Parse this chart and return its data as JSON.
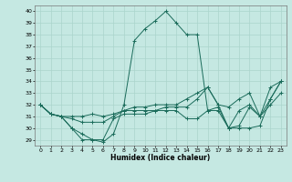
{
  "xlabel": "Humidex (Indice chaleur)",
  "xlim": [
    -0.5,
    23.5
  ],
  "ylim": [
    28.5,
    40.5
  ],
  "yticks": [
    29,
    30,
    31,
    32,
    33,
    34,
    35,
    36,
    37,
    38,
    39,
    40
  ],
  "xticks": [
    0,
    1,
    2,
    3,
    4,
    5,
    6,
    7,
    8,
    9,
    10,
    11,
    12,
    13,
    14,
    15,
    16,
    17,
    18,
    19,
    20,
    21,
    22,
    23
  ],
  "bg_color": "#c5e8e2",
  "grid_color": "#aad4cc",
  "line_color": "#1a6b5a",
  "lines": [
    [
      32,
      31.2,
      31,
      30,
      29,
      29,
      28.8,
      29.5,
      32,
      37.5,
      38.5,
      39.2,
      40,
      39,
      38,
      38,
      31.5,
      31.8,
      30,
      30,
      30,
      30.2,
      32.5,
      34
    ],
    [
      32,
      31.2,
      31,
      30,
      29.5,
      29,
      29,
      30.8,
      31.2,
      31.2,
      31.2,
      31.5,
      31.5,
      31.5,
      30.8,
      30.8,
      31.5,
      31.5,
      30,
      30.2,
      31.8,
      31,
      32.5,
      34
    ],
    [
      32,
      31.2,
      31,
      30.8,
      30.5,
      30.5,
      30.5,
      31,
      31.5,
      31.5,
      31.5,
      31.5,
      31.8,
      31.8,
      31.8,
      32.5,
      33.5,
      32,
      30,
      31.5,
      32,
      31,
      32,
      33
    ],
    [
      32,
      31.2,
      31,
      31,
      31,
      31.2,
      31,
      31.2,
      31.5,
      31.8,
      31.8,
      32,
      32,
      32,
      32.5,
      33,
      33.5,
      32,
      31.8,
      32.5,
      33,
      31,
      33.5,
      34
    ]
  ]
}
